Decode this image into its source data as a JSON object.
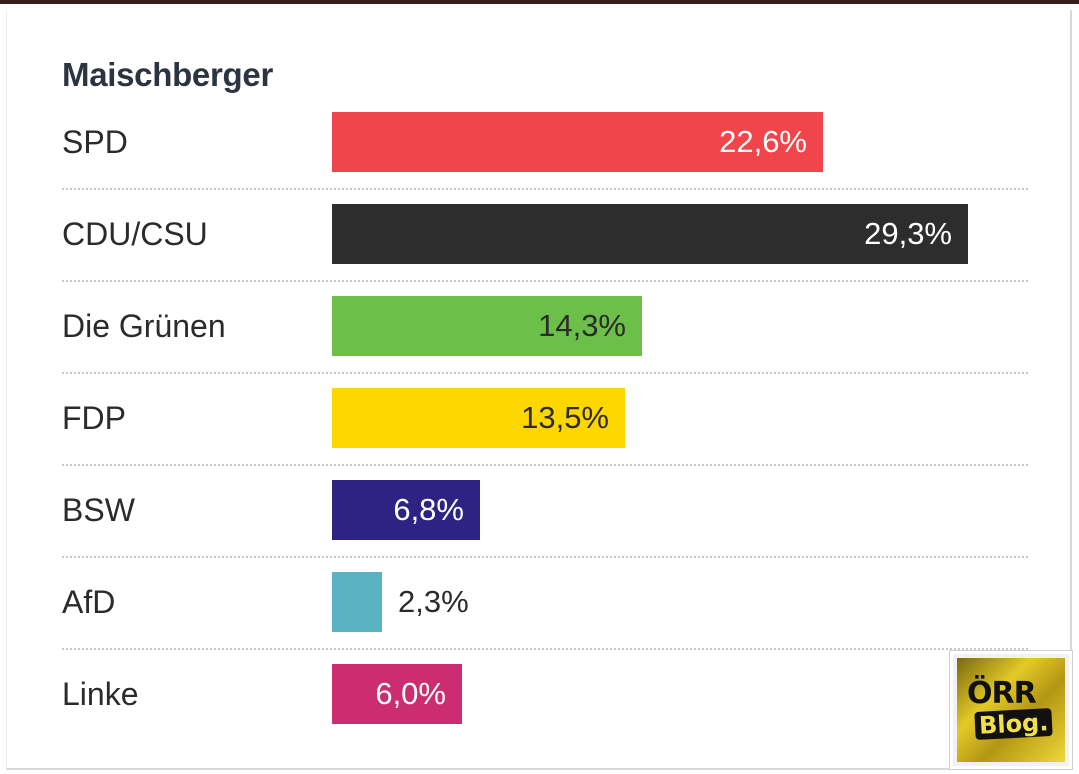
{
  "chart_data": {
    "type": "bar",
    "orientation": "horizontal",
    "title": "Maischberger",
    "categories": [
      "SPD",
      "CDU/CSU",
      "Die Grünen",
      "FDP",
      "BSW",
      "AfD",
      "Linke"
    ],
    "values": [
      22.6,
      29.3,
      14.3,
      13.5,
      6.8,
      2.3,
      6.0
    ],
    "value_labels": [
      "22,6%",
      "29,3%",
      "14,3%",
      "13,5%",
      "6,8%",
      "2,3%",
      "6,0%"
    ],
    "colors": [
      "#f0454a",
      "#2d2d2d",
      "#6cc04a",
      "#ffd700",
      "#2e2382",
      "#59b3c3",
      "#cc2c70"
    ],
    "label_colors": [
      "#ffffff",
      "#ffffff",
      "#2b2b2b",
      "#2b2b2b",
      "#ffffff",
      "#2b2b2b",
      "#ffffff"
    ],
    "xlim": [
      0,
      29.3
    ],
    "unit": "%"
  },
  "watermark": {
    "line1": "ÖRR",
    "line2": "Blog."
  }
}
